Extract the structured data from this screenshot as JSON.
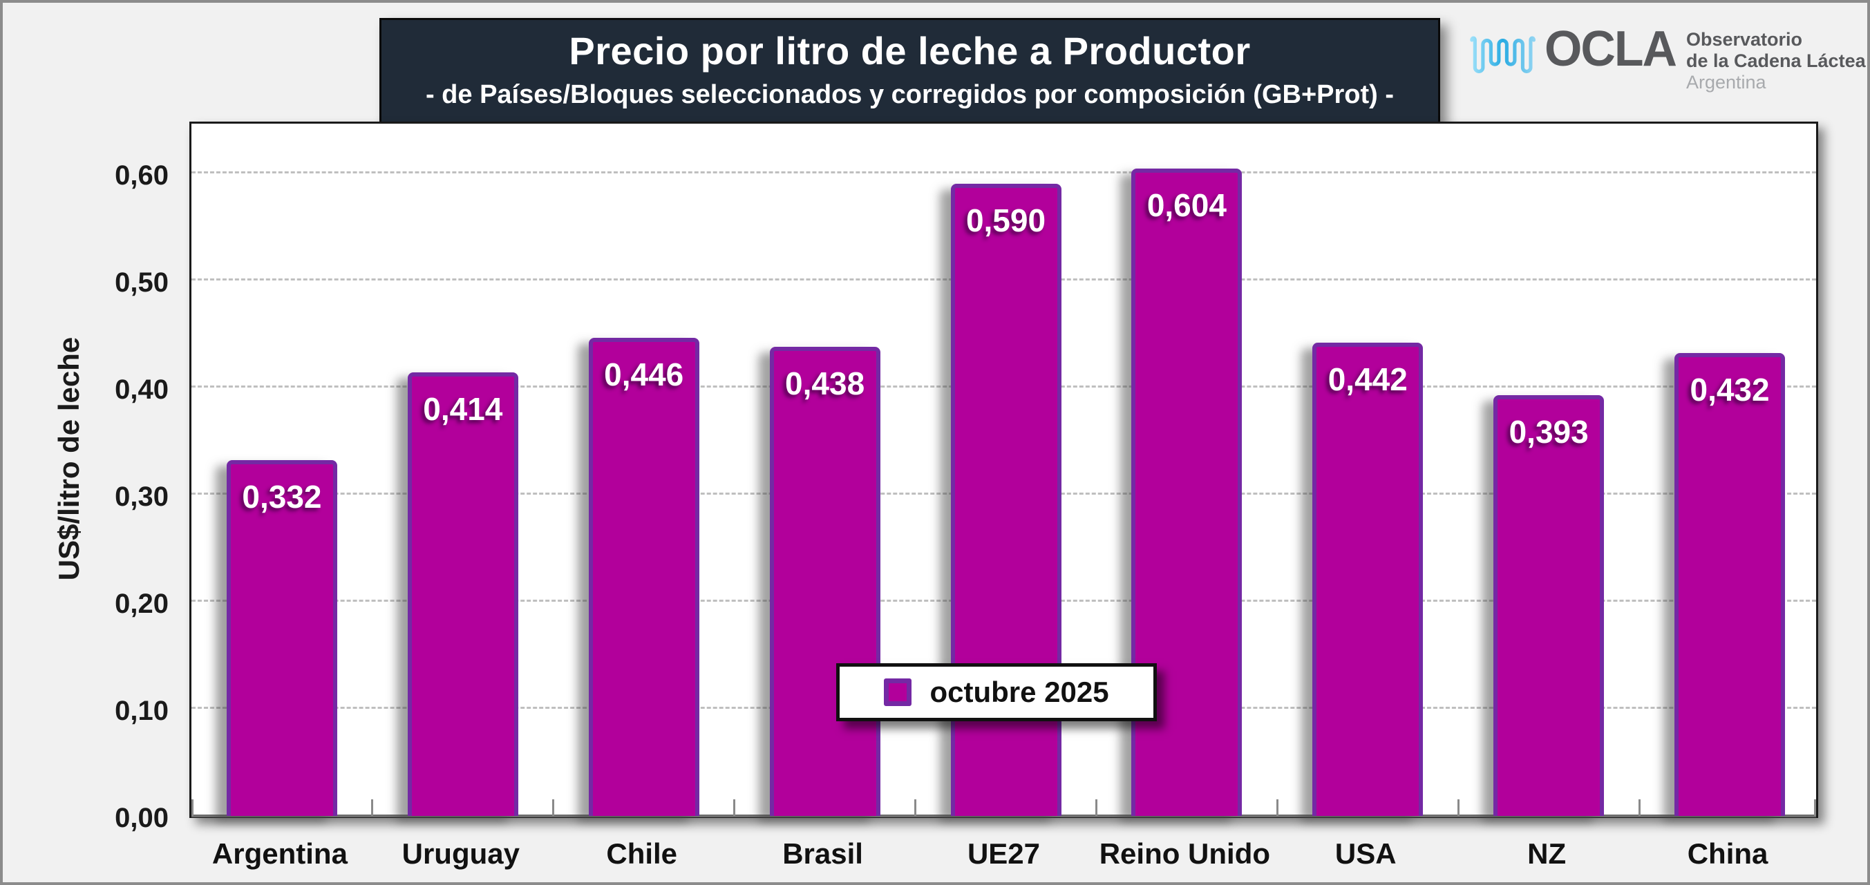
{
  "header": {
    "title": "Precio por litro de leche a Productor",
    "subtitle": "-  de Países/Bloques seleccionados y corregidos por composición (GB+Prot)  -"
  },
  "logo": {
    "acronym": "OCLA",
    "line1": "Observatorio",
    "line2": "de la Cadena Láctea",
    "line3": "Argentina"
  },
  "colors": {
    "bar_fill": "#B2009B",
    "bar_border": "#7429A4",
    "title_box_bg": "#202B38",
    "page_bg": "#F1F1F1",
    "plot_bg": "#FFFFFF",
    "gridline": "#BFBFBF",
    "logo_wave_blue": "#29ABE2",
    "logo_text_gray": "#58595C",
    "logo_text_light_gray": "#A8AAAD"
  },
  "chart_data": {
    "type": "bar",
    "title": "Precio por litro de leche a Productor",
    "subtitle": "-  de Países/Bloques seleccionados y corregidos por composición (GB+Prot)  -",
    "categories": [
      "Argentina",
      "Uruguay",
      "Chile",
      "Brasil",
      "UE27",
      "Reino Unido",
      "USA",
      "NZ",
      "China"
    ],
    "series": [
      {
        "name": "octubre 2025",
        "values": [
          0.332,
          0.414,
          0.446,
          0.438,
          0.59,
          0.604,
          0.442,
          0.393,
          0.432
        ]
      }
    ],
    "data_labels": [
      "0,332",
      "0,414",
      "0,446",
      "0,438",
      "0,590",
      "0,604",
      "0,442",
      "0,393",
      "0,432"
    ],
    "xlabel": "",
    "ylabel": "US$/litro de leche",
    "ylim": [
      0,
      0.65
    ],
    "yticks": [
      0.0,
      0.1,
      0.2,
      0.3,
      0.4,
      0.5,
      0.6
    ],
    "ytick_labels": [
      "0,00",
      "0,10",
      "0,20",
      "0,30",
      "0,40",
      "0,50",
      "0,60"
    ],
    "decimal_separator": ",",
    "grid": "horizontal dashed",
    "legend_position": "inside bottom center"
  }
}
